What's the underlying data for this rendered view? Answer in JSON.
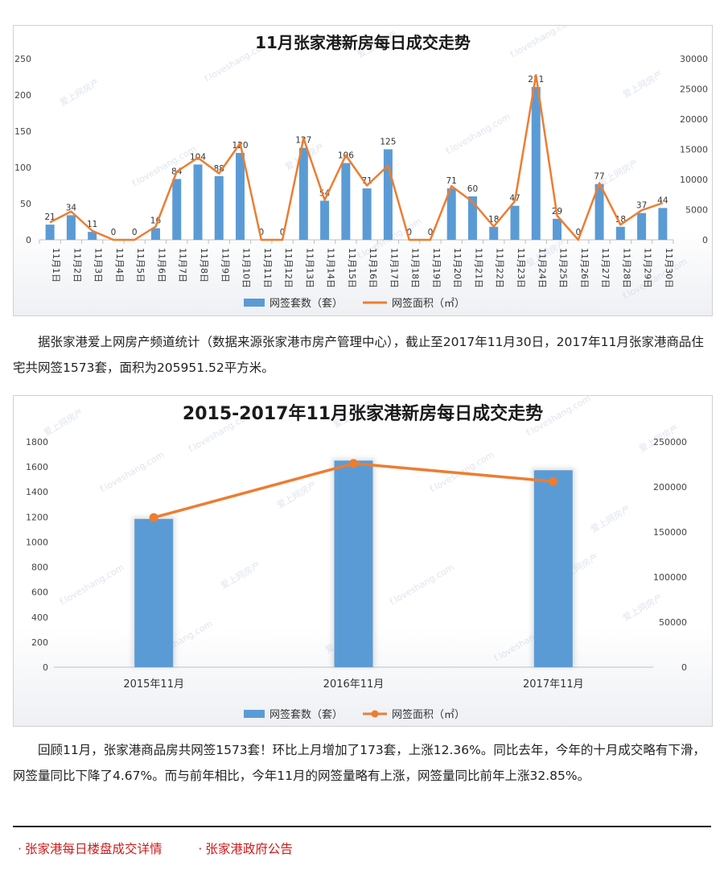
{
  "chart_data": [
    {
      "type": "bar",
      "title": "11月张家港新房每日成交走势",
      "categories": [
        "11月1日",
        "11月2日",
        "11月3日",
        "11月4日",
        "11月5日",
        "11月6日",
        "11月7日",
        "11月8日",
        "11月9日",
        "11月10日",
        "11月11日",
        "11月12日",
        "11月13日",
        "11月14日",
        "11月15日",
        "11月16日",
        "11月17日",
        "11月18日",
        "11月19日",
        "11月20日",
        "11月21日",
        "11月22日",
        "11月23日",
        "11月24日",
        "11月25日",
        "11月26日",
        "11月27日",
        "11月28日",
        "11月29日",
        "11月30日"
      ],
      "series": [
        {
          "name": "网签套数（套）",
          "type": "bar",
          "axis": "left",
          "color": "#5b9bd5",
          "values": [
            21,
            34,
            11,
            0,
            0,
            16,
            84,
            104,
            88,
            120,
            0,
            0,
            127,
            54,
            106,
            71,
            125,
            0,
            0,
            71,
            60,
            18,
            47,
            211,
            29,
            0,
            77,
            18,
            37,
            44
          ]
        },
        {
          "name": "网签面积（㎡）",
          "type": "line",
          "axis": "right",
          "color": "#ed7d31",
          "values": [
            2900,
            4700,
            1500,
            0,
            0,
            2200,
            11300,
            13600,
            11000,
            16000,
            0,
            0,
            16800,
            6600,
            14000,
            9000,
            12300,
            0,
            0,
            8900,
            6300,
            2200,
            6400,
            27300,
            4000,
            0,
            9400,
            2500,
            4900,
            6100
          ]
        }
      ],
      "ylim": [
        0,
        250
      ],
      "yticks": [
        0,
        50,
        100,
        150,
        200,
        250
      ],
      "y2lim": [
        0,
        30000
      ],
      "y2ticks": [
        0,
        5000,
        10000,
        15000,
        20000,
        25000,
        30000
      ],
      "legend": "bottom",
      "watermark": [
        "爱上网房产",
        "f.loveshang.com"
      ]
    },
    {
      "type": "bar",
      "title": "2015-2017年11月张家港新房每日成交走势",
      "categories": [
        "2015年11月",
        "2016年11月",
        "2017年11月"
      ],
      "series": [
        {
          "name": "网签套数（套）",
          "type": "bar",
          "axis": "left",
          "color": "#5b9bd5",
          "values": [
            1184,
            1650,
            1573
          ]
        },
        {
          "name": "网签面积（㎡）",
          "type": "line",
          "axis": "right",
          "color": "#ed7d31",
          "values": [
            166000,
            226000,
            206000
          ]
        }
      ],
      "ylim": [
        0,
        1800
      ],
      "yticks": [
        0,
        200,
        400,
        600,
        800,
        1000,
        1200,
        1400,
        1600,
        1800
      ],
      "y2lim": [
        0,
        250000
      ],
      "y2ticks": [
        0,
        50000,
        100000,
        150000,
        200000,
        250000
      ],
      "legend": "bottom",
      "watermark": [
        "爱上网房产",
        "f.loveshang.com"
      ]
    }
  ],
  "paragraphs": {
    "p1": "据张家港爱上网房产频道统计（数据来源张家港市房产管理中心），截止至2017年11月30日，2017年11月张家港商品住宅共网签1573套，面积为205951.52平方米。",
    "p2": "回顾11月，张家港商品房共网签1573套！环比上月增加了173套，上涨12.36%。同比去年，今年的十月成交略有下滑，网签量同比下降了4.67%。而与前年相比，今年11月的网签量略有上涨，网签量同比前年上涨32.85%。"
  },
  "links": [
    {
      "bullet": "·",
      "label": "张家港每日楼盘成交详情"
    },
    {
      "bullet": "·",
      "label": "张家港政府公告"
    }
  ]
}
